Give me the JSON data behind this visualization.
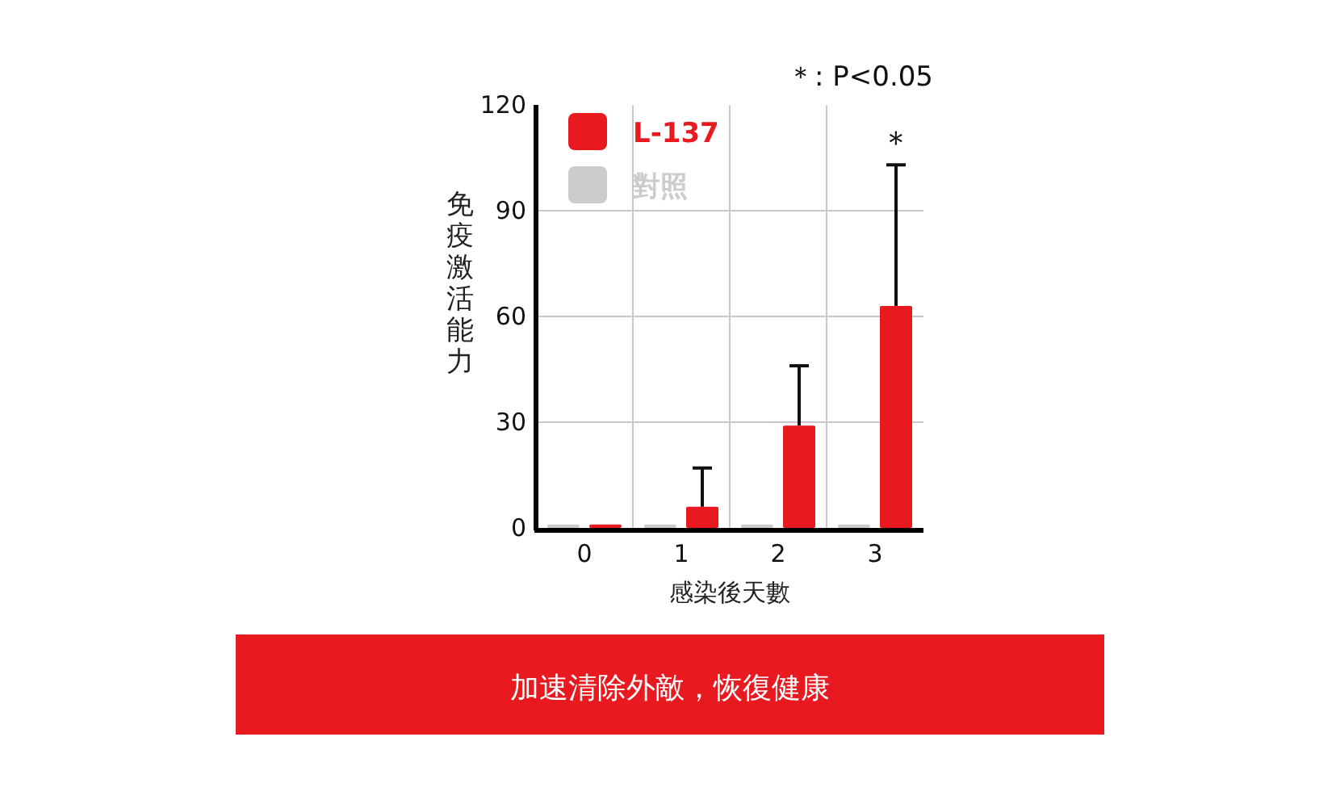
{
  "chart_data": {
    "type": "bar",
    "ylabel": "免疫激活能力",
    "xlabel": "感染後天數",
    "categories": [
      "0",
      "1",
      "2",
      "3"
    ],
    "series": [
      {
        "name": "L-137",
        "color": "#e8191f",
        "values": [
          1,
          6,
          29,
          63
        ],
        "errors": [
          null,
          [
            6,
            17
          ],
          [
            29,
            46
          ],
          [
            63,
            103
          ]
        ]
      },
      {
        "name": "對照",
        "color": "#cccccc",
        "values": [
          1,
          1,
          1,
          1
        ]
      }
    ],
    "ylim": [
      0,
      120
    ],
    "yticks": [
      0,
      30,
      60,
      90,
      120
    ],
    "grid": true,
    "legend": "top left",
    "annotations": [
      "＊: P<0.05",
      "＊",
      "加速清除外敵，恢復健康"
    ]
  }
}
